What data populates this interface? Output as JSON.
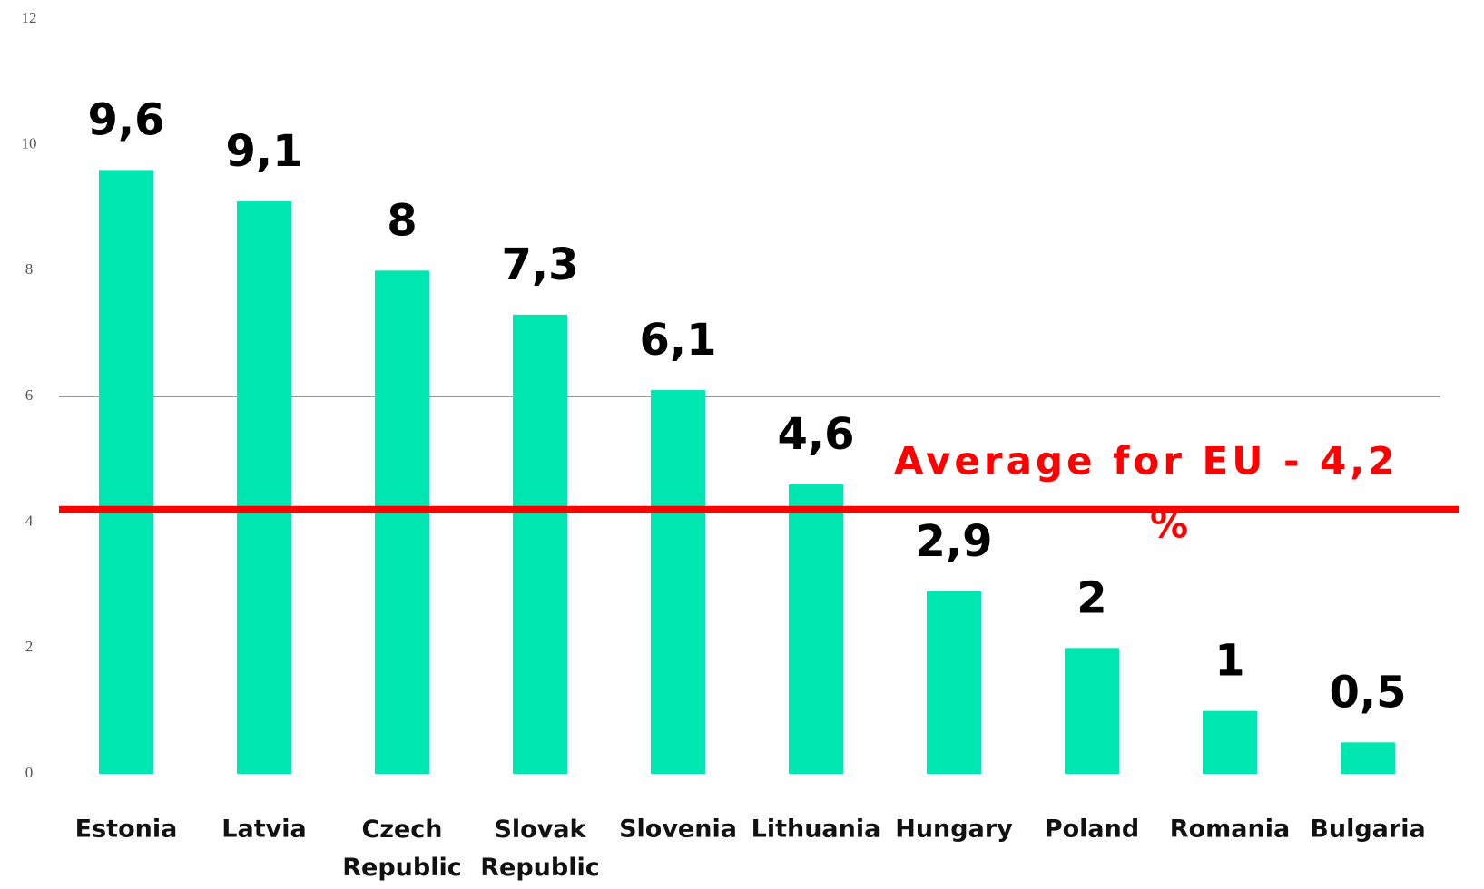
{
  "chart_data": {
    "type": "bar",
    "categories": [
      "Estonia",
      "Latvia",
      "Czech Republic",
      "Slovak Republic",
      "Slovenia",
      "Lithuania",
      "Hungary",
      "Poland",
      "Romania",
      "Bulgaria"
    ],
    "values": [
      9.6,
      9.1,
      8,
      7.3,
      6.1,
      4.6,
      2.9,
      2,
      1,
      0.5
    ],
    "value_labels": [
      "9,6",
      "9,1",
      "8",
      "7,3",
      "6,1",
      "4,6",
      "2,9",
      "2",
      "1",
      "0,5"
    ],
    "color": "#00e6b0",
    "ylim": [
      0,
      12
    ],
    "yticks": [
      0,
      2,
      4,
      6,
      8,
      10,
      12
    ],
    "grid_lines": [
      6
    ],
    "reference_line": {
      "value": 4.2,
      "label": [
        "Average for EU - 4,2",
        "%"
      ],
      "color": "#ff0000"
    }
  }
}
